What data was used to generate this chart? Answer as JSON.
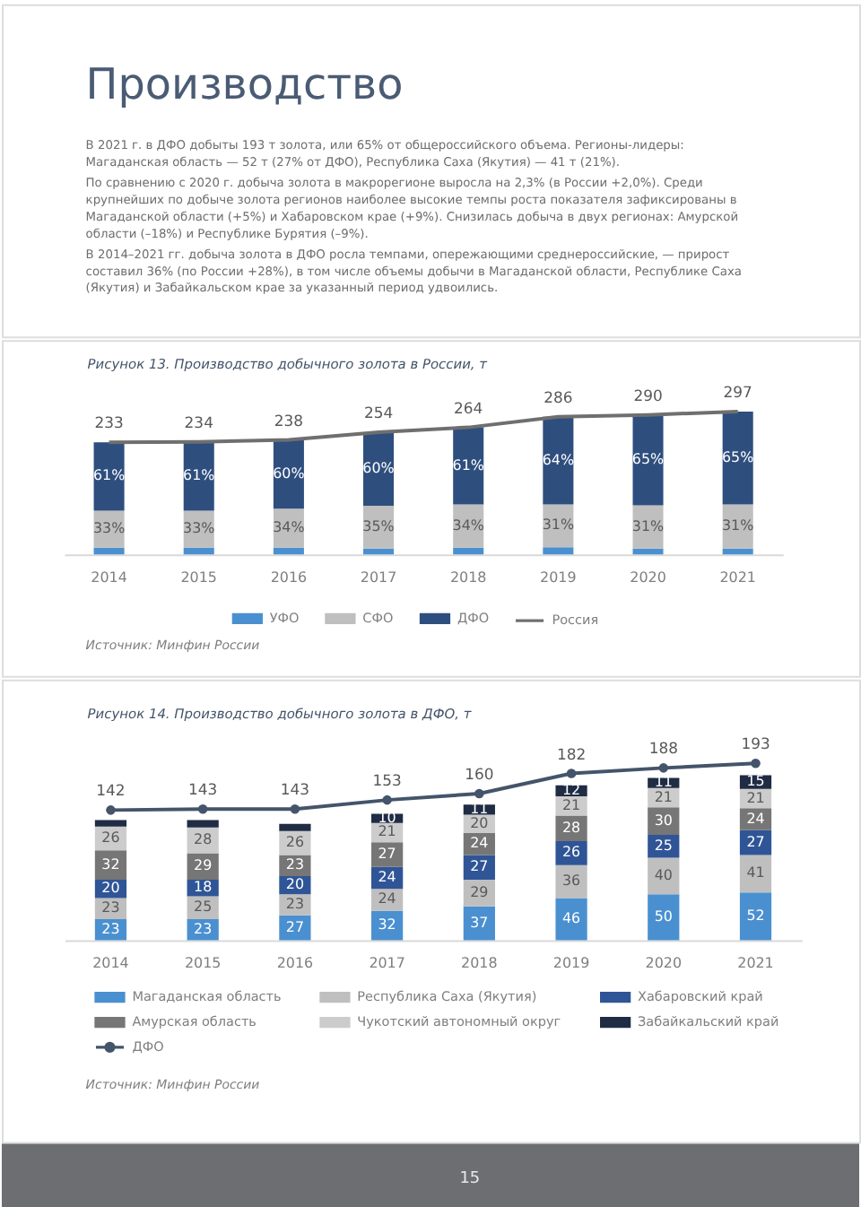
{
  "chart_data": [
    {
      "type": "other",
      "title": "Производство",
      "annotations": [
        "В 2021 г. в ДФО добыты 193 т золота, или 65% от общероссийского объема. Регионы-лидеры: Магаданская область — 52 т (27% от ДФО), Республика Саха (Якутия) — 41 т (21%).",
        "По сравнению с 2020 г. добыча золота в макрорегионе выросла на 2,3% (в России +2,0%). Среди крупнейших по добыче золота регионов наиболее высокие темпы роста показателя зафиксированы в Магаданской области (+5%) и Хабаровском крае (+9%). Снизилась добыча в двух регионах: Амурской области (–18%) и Республике Бурятия (–9%).",
        "В 2014–2021 гг. добыча золота в ДФО росла темпами, опережающими среднероссийские, — прирост составил 36% (по России +28%), в том числе объемы добычи в Магаданской области, Республике Саха (Якутия) и Забайкальском крае за указанный период удвоились."
      ]
    },
    {
      "type": "bar",
      "title": "Рисунок 13. Производство добычного золота в России, т",
      "categories": [
        "2014",
        "2015",
        "2016",
        "2017",
        "2018",
        "2019",
        "2020",
        "2021"
      ],
      "stacked": true,
      "legend": "bottom",
      "tick_labels": "x",
      "series": [
        {
          "name": "УФО",
          "color": "#4a90d0",
          "values": [
            14,
            14,
            14,
            12,
            14,
            15,
            12,
            12
          ]
        },
        {
          "name": "СФО",
          "color": "#bfbfbf",
          "values": [
            77,
            77,
            81,
            89,
            90,
            89,
            90,
            92
          ]
        },
        {
          "name": "ДФО",
          "color": "#2e4e7e",
          "values": [
            142,
            143,
            143,
            153,
            160,
            182,
            188,
            193
          ]
        },
        {
          "name": "Россия",
          "type": "line",
          "color": "#6f6f6f",
          "line_style": "solid",
          "values": [
            233,
            234,
            238,
            254,
            264,
            286,
            290,
            297
          ],
          "value_labels": [
            "233",
            "234",
            "238",
            "254",
            "264",
            "286",
            "290",
            "297"
          ]
        }
      ],
      "annotations": [
        {
          "text": "33%",
          "x": "2014",
          "y": 91
        },
        {
          "text": "33%",
          "x": "2015",
          "y": 91
        },
        {
          "text": "34%",
          "x": "2016",
          "y": 95
        },
        {
          "text": "35%",
          "x": "2017",
          "y": 101
        },
        {
          "text": "34%",
          "x": "2018",
          "y": 104
        },
        {
          "text": "31%",
          "x": "2019",
          "y": 104
        },
        {
          "text": "31%",
          "x": "2020",
          "y": 102
        },
        {
          "text": "31%",
          "x": "2021",
          "y": 104
        },
        {
          "text": "61%",
          "x": "2014",
          "y": 233
        },
        {
          "text": "61%",
          "x": "2015",
          "y": 234
        },
        {
          "text": "60%",
          "x": "2016",
          "y": 238
        },
        {
          "text": "60%",
          "x": "2017",
          "y": 254
        },
        {
          "text": "61%",
          "x": "2018",
          "y": 264
        },
        {
          "text": "64%",
          "x": "2019",
          "y": 286
        },
        {
          "text": "65%",
          "x": "2020",
          "y": 290
        },
        {
          "text": "65%",
          "x": "2021",
          "y": 297
        },
        "Источник: Минфин России"
      ]
    },
    {
      "type": "bar",
      "title": "Рисунок 14. Производство добычного золота в ДФО, т",
      "categories": [
        "2014",
        "2015",
        "2016",
        "2017",
        "2018",
        "2019",
        "2020",
        "2021"
      ],
      "stacked": true,
      "legend": "bottom",
      "tick_labels": "x",
      "series": [
        {
          "name": "Магаданская область",
          "color": "#4a90d0",
          "values": [
            23,
            23,
            27,
            32,
            37,
            46,
            50,
            52
          ],
          "value_labels": [
            "23",
            "23",
            "27",
            "32",
            "37",
            "46",
            "50",
            "52"
          ]
        },
        {
          "name": "Республика Саха (Якутия)",
          "color": "#bfbfbf",
          "values": [
            23,
            25,
            23,
            24,
            29,
            36,
            40,
            41
          ],
          "value_labels": [
            "23",
            "25",
            "23",
            "24",
            "29",
            "36",
            "40",
            "41"
          ]
        },
        {
          "name": "Хабаровский край",
          "color": "#2f5597",
          "values": [
            20,
            18,
            20,
            24,
            27,
            26,
            25,
            27
          ],
          "value_labels": [
            "20",
            "18",
            "20",
            "24",
            "27",
            "26",
            "25",
            "27"
          ]
        },
        {
          "name": "Амурская область",
          "color": "#767676",
          "values": [
            32,
            29,
            23,
            27,
            24,
            28,
            30,
            24
          ],
          "value_labels": [
            "32",
            "29",
            "23",
            "27",
            "24",
            "28",
            "30",
            "24"
          ]
        },
        {
          "name": "Чукотский автономный округ",
          "color": "#cccccc",
          "values": [
            26,
            28,
            26,
            21,
            20,
            21,
            21,
            21
          ],
          "value_labels": [
            "26",
            "28",
            "26",
            "21",
            "20",
            "21",
            "21",
            "21"
          ]
        },
        {
          "name": "Забайкальский край",
          "color": "#1f2c44",
          "values": [
            7,
            8,
            8,
            10,
            11,
            12,
            11,
            15
          ],
          "value_labels": [
            null,
            null,
            null,
            "10",
            "11",
            "12",
            "11",
            "15"
          ]
        },
        {
          "name": "ДФО",
          "type": "line",
          "color": "#44546a",
          "marker": "circle",
          "line_style": "solid",
          "values": [
            142,
            143,
            143,
            153,
            160,
            182,
            188,
            193
          ],
          "value_labels": [
            "142",
            "143",
            "143",
            "153",
            "160",
            "182",
            "188",
            "193"
          ]
        }
      ],
      "annotations": [
        "Источник: Минфин России"
      ]
    },
    {
      "type": "other",
      "annotations": [
        "15"
      ]
    }
  ]
}
